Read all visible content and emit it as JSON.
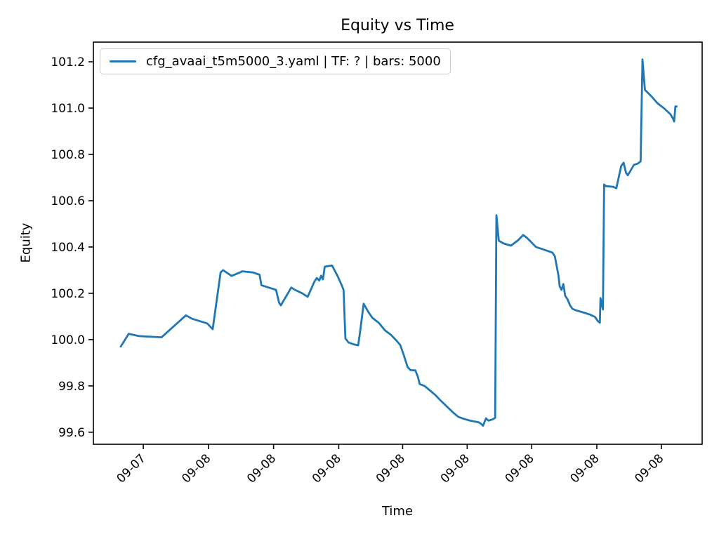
{
  "figure": {
    "background": "#ffffff",
    "text_color": "#000000"
  },
  "chart_data": {
    "type": "line",
    "title": "Equity vs Time",
    "xlabel": "Time",
    "ylabel": "Equity",
    "grid": false,
    "legend_position": "upper left",
    "legend": [
      {
        "label": "cfg_avaai_t5m5000_3.yaml | TF: ? | bars: 5000",
        "color": "#1f77b4"
      }
    ],
    "ylim": [
      99.548,
      101.285
    ],
    "y_ticks": [
      99.6,
      99.8,
      100.0,
      100.2,
      100.4,
      100.6,
      100.8,
      101.0,
      101.2
    ],
    "x_ticks": [
      {
        "pos": 0.082,
        "label": "09-07"
      },
      {
        "pos": 0.189,
        "label": "09-08"
      },
      {
        "pos": 0.296,
        "label": "09-08"
      },
      {
        "pos": 0.403,
        "label": "09-08"
      },
      {
        "pos": 0.508,
        "label": "09-08"
      },
      {
        "pos": 0.614,
        "label": "09-08"
      },
      {
        "pos": 0.72,
        "label": "09-08"
      },
      {
        "pos": 0.827,
        "label": "09-08"
      },
      {
        "pos": 0.933,
        "label": "09-08"
      }
    ],
    "series": [
      {
        "name": "cfg_avaai_t5m5000_3.yaml | TF: ? | bars: 5000",
        "color": "#1f77b4",
        "line_width": 2.8,
        "x_unit": "fraction_of_time_axis",
        "points": [
          [
            0.045,
            99.97
          ],
          [
            0.058,
            100.025
          ],
          [
            0.075,
            100.015
          ],
          [
            0.112,
            100.01
          ],
          [
            0.152,
            100.105
          ],
          [
            0.162,
            100.09
          ],
          [
            0.187,
            100.07
          ],
          [
            0.196,
            100.045
          ],
          [
            0.209,
            100.29
          ],
          [
            0.213,
            100.3
          ],
          [
            0.227,
            100.275
          ],
          [
            0.245,
            100.295
          ],
          [
            0.262,
            100.29
          ],
          [
            0.273,
            100.28
          ],
          [
            0.276,
            100.235
          ],
          [
            0.3,
            100.215
          ],
          [
            0.305,
            100.16
          ],
          [
            0.308,
            100.148
          ],
          [
            0.325,
            100.225
          ],
          [
            0.331,
            100.215
          ],
          [
            0.343,
            100.2
          ],
          [
            0.352,
            100.185
          ],
          [
            0.363,
            100.25
          ],
          [
            0.367,
            100.266
          ],
          [
            0.371,
            100.255
          ],
          [
            0.374,
            100.276
          ],
          [
            0.377,
            100.26
          ],
          [
            0.38,
            100.315
          ],
          [
            0.392,
            100.32
          ],
          [
            0.401,
            100.275
          ],
          [
            0.407,
            100.24
          ],
          [
            0.411,
            100.215
          ],
          [
            0.414,
            100.005
          ],
          [
            0.419,
            99.988
          ],
          [
            0.427,
            99.98
          ],
          [
            0.435,
            99.975
          ],
          [
            0.438,
            100.03
          ],
          [
            0.444,
            100.155
          ],
          [
            0.452,
            100.118
          ],
          [
            0.458,
            100.095
          ],
          [
            0.469,
            100.072
          ],
          [
            0.479,
            100.04
          ],
          [
            0.489,
            100.02
          ],
          [
            0.498,
            99.995
          ],
          [
            0.504,
            99.977
          ],
          [
            0.51,
            99.932
          ],
          [
            0.516,
            99.882
          ],
          [
            0.521,
            99.868
          ],
          [
            0.529,
            99.867
          ],
          [
            0.533,
            99.84
          ],
          [
            0.536,
            99.808
          ],
          [
            0.544,
            99.8
          ],
          [
            0.553,
            99.78
          ],
          [
            0.562,
            99.76
          ],
          [
            0.571,
            99.735
          ],
          [
            0.579,
            99.715
          ],
          [
            0.591,
            99.685
          ],
          [
            0.599,
            99.667
          ],
          [
            0.608,
            99.658
          ],
          [
            0.619,
            99.65
          ],
          [
            0.633,
            99.643
          ],
          [
            0.637,
            99.636
          ],
          [
            0.64,
            99.628
          ],
          [
            0.645,
            99.66
          ],
          [
            0.649,
            99.65
          ],
          [
            0.656,
            99.656
          ],
          [
            0.66,
            99.662
          ],
          [
            0.662,
            100.537
          ],
          [
            0.666,
            100.427
          ],
          [
            0.674,
            100.415
          ],
          [
            0.686,
            100.406
          ],
          [
            0.698,
            100.43
          ],
          [
            0.706,
            100.452
          ],
          [
            0.712,
            100.44
          ],
          [
            0.717,
            100.427
          ],
          [
            0.727,
            100.4
          ],
          [
            0.741,
            100.388
          ],
          [
            0.754,
            100.376
          ],
          [
            0.758,
            100.36
          ],
          [
            0.764,
            100.276
          ],
          [
            0.766,
            100.23
          ],
          [
            0.769,
            100.215
          ],
          [
            0.772,
            100.24
          ],
          [
            0.775,
            100.19
          ],
          [
            0.779,
            100.173
          ],
          [
            0.783,
            100.148
          ],
          [
            0.787,
            100.133
          ],
          [
            0.792,
            100.127
          ],
          [
            0.804,
            100.118
          ],
          [
            0.816,
            100.108
          ],
          [
            0.824,
            100.098
          ],
          [
            0.829,
            100.079
          ],
          [
            0.832,
            100.073
          ],
          [
            0.833,
            100.179
          ],
          [
            0.835,
            100.155
          ],
          [
            0.837,
            100.13
          ],
          [
            0.839,
            100.67
          ],
          [
            0.842,
            100.663
          ],
          [
            0.854,
            100.66
          ],
          [
            0.859,
            100.654
          ],
          [
            0.867,
            100.75
          ],
          [
            0.871,
            100.764
          ],
          [
            0.875,
            100.72
          ],
          [
            0.878,
            100.71
          ],
          [
            0.888,
            100.755
          ],
          [
            0.894,
            100.76
          ],
          [
            0.899,
            100.77
          ],
          [
            0.902,
            101.21
          ],
          [
            0.906,
            101.079
          ],
          [
            0.917,
            101.05
          ],
          [
            0.927,
            101.02
          ],
          [
            0.937,
            101.0
          ],
          [
            0.942,
            100.988
          ],
          [
            0.948,
            100.973
          ],
          [
            0.952,
            100.955
          ],
          [
            0.954,
            100.942
          ],
          [
            0.956,
            101.007
          ],
          [
            0.958,
            101.007
          ]
        ]
      }
    ]
  }
}
